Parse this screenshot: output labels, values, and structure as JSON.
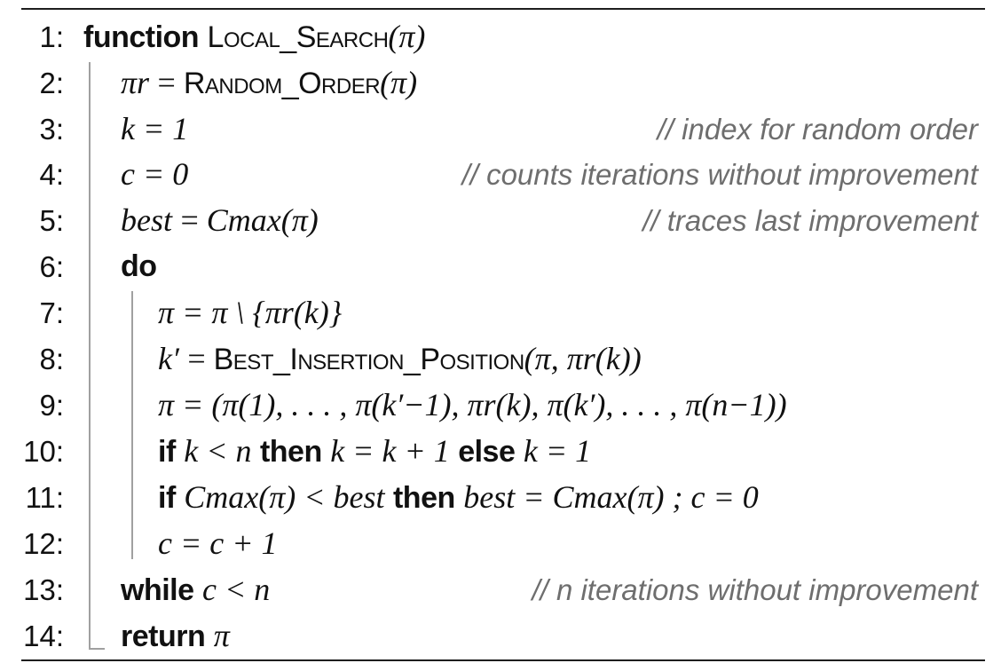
{
  "algorithm": {
    "lines": [
      {
        "num": "1:",
        "kw": "function",
        "proc": "Local_Search",
        "args": "(π)"
      },
      {
        "num": "2:",
        "lhs": "πr",
        "rhs_proc": "Random_Order",
        "rhs_args": "(π)"
      },
      {
        "num": "3:",
        "expr": "k = 1",
        "comment": "// index for random order"
      },
      {
        "num": "4:",
        "expr": "c = 0",
        "comment": "// counts iterations without improvement"
      },
      {
        "num": "5:",
        "lhs": "best",
        "rhs": "Cmax(π)",
        "comment": "// traces last improvement"
      },
      {
        "num": "6:",
        "kw": "do"
      },
      {
        "num": "7:",
        "expr": "π = π \\ {πr(k)}"
      },
      {
        "num": "8:",
        "lhs": "k′",
        "rhs_proc": "Best_Insertion_Position",
        "rhs_args": "(π, πr(k))"
      },
      {
        "num": "9:",
        "expr": "π = (π(1), . . . , π(k′−1), πr(k), π(k′), . . . , π(n−1))"
      },
      {
        "num": "10:",
        "kw_if": "if",
        "cond": "k < n",
        "kw_then": "then",
        "then": "k = k + 1",
        "kw_else": "else",
        "else": "k = 1"
      },
      {
        "num": "11:",
        "kw_if": "if",
        "cond": "Cmax(π) < best",
        "kw_then": "then",
        "then": "best = Cmax(π) ; c = 0"
      },
      {
        "num": "12:",
        "expr": "c = c + 1"
      },
      {
        "num": "13:",
        "kw": "while",
        "cond": "c < n",
        "comment": "// n iterations without improvement"
      },
      {
        "num": "14:",
        "kw": "return",
        "expr": "π"
      }
    ]
  }
}
